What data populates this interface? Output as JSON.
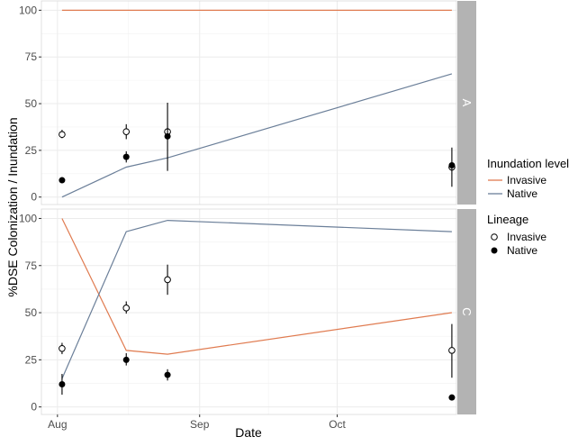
{
  "chart_data": {
    "type": "faceted_line_scatter",
    "xlabel": "Date",
    "ylabel": "%DSE Colonization / Inundation",
    "x_tick_labels": [
      "Aug",
      "Sep",
      "Oct"
    ],
    "x_ticks_day": [
      0,
      31,
      61
    ],
    "x_range_day": [
      -3.5,
      87
    ],
    "y_ticks": [
      0,
      25,
      50,
      75,
      100
    ],
    "y_range": [
      -4,
      105
    ],
    "legend_inundation": {
      "title": "Inundation level",
      "items": [
        {
          "name": "Invasive",
          "color": "#E07B50"
        },
        {
          "name": "Native",
          "color": "#6B7F99"
        }
      ]
    },
    "legend_lineage": {
      "title": "Lineage",
      "items": [
        {
          "name": "Invasive",
          "marker": "open-circle"
        },
        {
          "name": "Native",
          "marker": "filled-circle"
        }
      ]
    },
    "panels": [
      {
        "label": "A",
        "lines": [
          {
            "name": "Invasive",
            "color": "#E07B50",
            "x": [
              1,
              86
            ],
            "y": [
              100,
              100
            ]
          },
          {
            "name": "Native",
            "color": "#6B7F99",
            "x": [
              1,
              15,
              24,
              86
            ],
            "y": [
              0,
              16,
              21,
              66
            ]
          }
        ],
        "points": [
          {
            "lineage": "Invasive",
            "x": 1,
            "y": 33.5,
            "lo": 31.5,
            "hi": 36
          },
          {
            "lineage": "Native",
            "x": 1,
            "y": 9,
            "lo": 8,
            "hi": 10
          },
          {
            "lineage": "Invasive",
            "x": 15,
            "y": 35,
            "lo": 31,
            "hi": 39
          },
          {
            "lineage": "Native",
            "x": 15,
            "y": 21.5,
            "lo": 18.5,
            "hi": 24.5
          },
          {
            "lineage": "Invasive",
            "x": 24,
            "y": 35,
            "lo": 33,
            "hi": 37
          },
          {
            "lineage": "Native",
            "x": 24,
            "y": 32.5,
            "lo": 14,
            "hi": 50.5
          },
          {
            "lineage": "Invasive",
            "x": 86,
            "y": 16,
            "lo": 14,
            "hi": 18
          },
          {
            "lineage": "Native",
            "x": 86,
            "y": 17,
            "lo": 5.5,
            "hi": 26.5
          }
        ]
      },
      {
        "label": "C",
        "lines": [
          {
            "name": "Invasive",
            "color": "#E07B50",
            "x": [
              1,
              15,
              24,
              86
            ],
            "y": [
              100,
              30,
              28,
              50
            ]
          },
          {
            "name": "Native",
            "color": "#6B7F99",
            "x": [
              1,
              15,
              24,
              86
            ],
            "y": [
              15,
              93,
              99,
              93
            ]
          }
        ],
        "points": [
          {
            "lineage": "Invasive",
            "x": 1,
            "y": 31,
            "lo": 28,
            "hi": 34
          },
          {
            "lineage": "Native",
            "x": 1,
            "y": 12,
            "lo": 6.5,
            "hi": 17.5
          },
          {
            "lineage": "Invasive",
            "x": 15,
            "y": 52.5,
            "lo": 49.5,
            "hi": 56
          },
          {
            "lineage": "Native",
            "x": 15,
            "y": 25,
            "lo": 22,
            "hi": 28.5
          },
          {
            "lineage": "Invasive",
            "x": 24,
            "y": 67.5,
            "lo": 59.5,
            "hi": 75.5
          },
          {
            "lineage": "Native",
            "x": 24,
            "y": 17,
            "lo": 14,
            "hi": 20
          },
          {
            "lineage": "Invasive",
            "x": 86,
            "y": 30,
            "lo": 15.5,
            "hi": 44
          },
          {
            "lineage": "Native",
            "x": 86,
            "y": 5,
            "lo": 4,
            "hi": 6
          }
        ]
      }
    ]
  }
}
